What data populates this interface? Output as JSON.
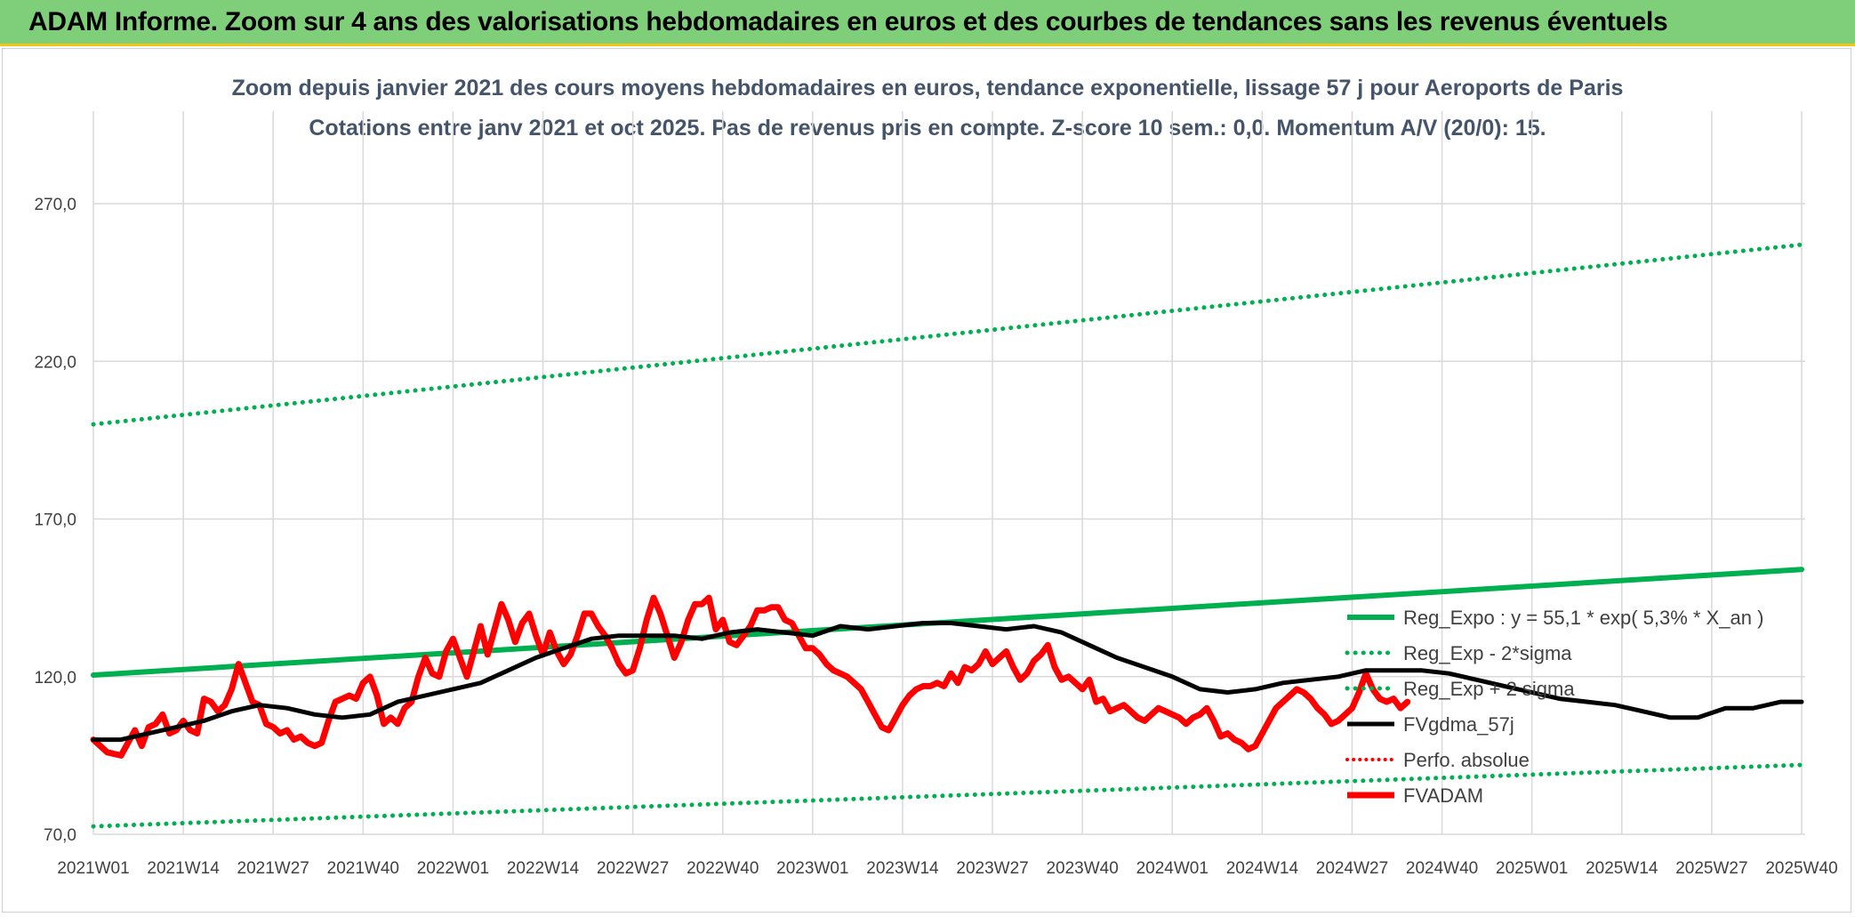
{
  "header": {
    "title": "ADAM Informe. Zoom sur 4 ans des valorisations hebdomadaires en euros et des courbes de tendances sans les revenus éventuels"
  },
  "colors": {
    "banner": "#7fcf7a",
    "banner_border": "#f0c419",
    "green": "#00b050",
    "black": "#000000",
    "red": "#ff0000",
    "grid": "#d9d9d9"
  },
  "chart_data": {
    "type": "line",
    "title": "Zoom depuis janvier 2021 des cours moyens hebdomadaires en euros, tendance exponentielle, lissage 57 j pour Aeroports de Paris",
    "subtitle": "Cotations entre janv 2021 et oct 2025. Pas de revenus pris en compte. Z-score 10 sem.: 0,0. Momentum A/V (20/0): 15.",
    "xlabel": "",
    "ylabel": "",
    "ylim": [
      70,
      290
    ],
    "yticks": [
      70,
      120,
      170,
      220,
      270
    ],
    "ytick_labels": [
      "70,0",
      "120,0",
      "170,0",
      "220,0",
      "270,0"
    ],
    "xticks": [
      "2021W01",
      "2021W14",
      "2021W27",
      "2021W40",
      "2022W01",
      "2022W14",
      "2022W27",
      "2022W40",
      "2023W01",
      "2023W14",
      "2023W27",
      "2023W40",
      "2024W01",
      "2024W14",
      "2024W27",
      "2024W40",
      "2025W01",
      "2025W14",
      "2025W27",
      "2025W40"
    ],
    "x_range_weeks": [
      0,
      247
    ],
    "grid": true,
    "legend_position": "right",
    "series": [
      {
        "name": "Reg_Expo : y = 55,1 * exp( 5,3% *  X_an )",
        "style": "solid-green",
        "points": [
          [
            0,
            120.5
          ],
          [
            247,
            154
          ]
        ]
      },
      {
        "name": "Reg_Exp - 2*sigma",
        "style": "dotted-green",
        "points": [
          [
            0,
            72.5
          ],
          [
            247,
            92
          ]
        ]
      },
      {
        "name": "Reg_Exp + 2 sigma",
        "style": "dotted-green",
        "points": [
          [
            0,
            200
          ],
          [
            247,
            257
          ]
        ]
      },
      {
        "name": "FVgdma_57j",
        "style": "solid-black",
        "points": [
          [
            0,
            100
          ],
          [
            4,
            100
          ],
          [
            8,
            102
          ],
          [
            12,
            104
          ],
          [
            16,
            106
          ],
          [
            20,
            109
          ],
          [
            24,
            111
          ],
          [
            28,
            110
          ],
          [
            32,
            108
          ],
          [
            36,
            107
          ],
          [
            40,
            108
          ],
          [
            44,
            112
          ],
          [
            48,
            114
          ],
          [
            52,
            116
          ],
          [
            56,
            118
          ],
          [
            60,
            122
          ],
          [
            64,
            126
          ],
          [
            68,
            129
          ],
          [
            72,
            132
          ],
          [
            76,
            133
          ],
          [
            80,
            133
          ],
          [
            84,
            133
          ],
          [
            88,
            132
          ],
          [
            92,
            134
          ],
          [
            96,
            135
          ],
          [
            100,
            134
          ],
          [
            104,
            133
          ],
          [
            108,
            136
          ],
          [
            112,
            135
          ],
          [
            116,
            136
          ],
          [
            120,
            137
          ],
          [
            124,
            137
          ],
          [
            128,
            136
          ],
          [
            132,
            135
          ],
          [
            136,
            136
          ],
          [
            140,
            134
          ],
          [
            144,
            130
          ],
          [
            148,
            126
          ],
          [
            152,
            123
          ],
          [
            156,
            120
          ],
          [
            160,
            116
          ],
          [
            164,
            115
          ],
          [
            168,
            116
          ],
          [
            172,
            118
          ],
          [
            176,
            119
          ],
          [
            180,
            120
          ],
          [
            184,
            122
          ],
          [
            188,
            122
          ],
          [
            192,
            122
          ],
          [
            196,
            121
          ],
          [
            200,
            119
          ],
          [
            204,
            117
          ],
          [
            208,
            115
          ],
          [
            212,
            113
          ],
          [
            216,
            112
          ],
          [
            220,
            111
          ],
          [
            224,
            109
          ],
          [
            228,
            107
          ],
          [
            232,
            107
          ],
          [
            236,
            110
          ],
          [
            240,
            110
          ],
          [
            244,
            112
          ],
          [
            247,
            112
          ]
        ]
      },
      {
        "name": "Perfo. absolue",
        "style": "dotted-red",
        "points": []
      },
      {
        "name": "FVADAM",
        "style": "thick-red",
        "points": [
          [
            0,
            100
          ],
          [
            2,
            96
          ],
          [
            4,
            95
          ],
          [
            6,
            103
          ],
          [
            7,
            98
          ],
          [
            8,
            104
          ],
          [
            9,
            105
          ],
          [
            10,
            108
          ],
          [
            11,
            102
          ],
          [
            12,
            103
          ],
          [
            13,
            106
          ],
          [
            14,
            103
          ],
          [
            15,
            102
          ],
          [
            16,
            113
          ],
          [
            17,
            112
          ],
          [
            18,
            109
          ],
          [
            19,
            111
          ],
          [
            20,
            116
          ],
          [
            21,
            124
          ],
          [
            22,
            118
          ],
          [
            23,
            112
          ],
          [
            24,
            111
          ],
          [
            25,
            105
          ],
          [
            26,
            104
          ],
          [
            27,
            102
          ],
          [
            28,
            103
          ],
          [
            29,
            100
          ],
          [
            30,
            101
          ],
          [
            31,
            99
          ],
          [
            32,
            98
          ],
          [
            33,
            99
          ],
          [
            34,
            106
          ],
          [
            35,
            112
          ],
          [
            36,
            113
          ],
          [
            37,
            114
          ],
          [
            38,
            113
          ],
          [
            39,
            118
          ],
          [
            40,
            120
          ],
          [
            41,
            114
          ],
          [
            42,
            105
          ],
          [
            43,
            107
          ],
          [
            44,
            105
          ],
          [
            45,
            110
          ],
          [
            46,
            112
          ],
          [
            47,
            120
          ],
          [
            48,
            126
          ],
          [
            49,
            121
          ],
          [
            50,
            120
          ],
          [
            51,
            128
          ],
          [
            52,
            132
          ],
          [
            53,
            126
          ],
          [
            54,
            120
          ],
          [
            55,
            128
          ],
          [
            56,
            136
          ],
          [
            57,
            127
          ],
          [
            58,
            135
          ],
          [
            59,
            143
          ],
          [
            60,
            138
          ],
          [
            61,
            131
          ],
          [
            62,
            137
          ],
          [
            63,
            140
          ],
          [
            64,
            133
          ],
          [
            65,
            127
          ],
          [
            66,
            134
          ],
          [
            67,
            128
          ],
          [
            68,
            124
          ],
          [
            69,
            127
          ],
          [
            70,
            133
          ],
          [
            71,
            140
          ],
          [
            72,
            140
          ],
          [
            73,
            136
          ],
          [
            74,
            133
          ],
          [
            75,
            129
          ],
          [
            76,
            124
          ],
          [
            77,
            121
          ],
          [
            78,
            122
          ],
          [
            79,
            129
          ],
          [
            80,
            138
          ],
          [
            81,
            145
          ],
          [
            82,
            140
          ],
          [
            83,
            133
          ],
          [
            84,
            126
          ],
          [
            85,
            131
          ],
          [
            86,
            138
          ],
          [
            87,
            143
          ],
          [
            88,
            143
          ],
          [
            89,
            145
          ],
          [
            90,
            135
          ],
          [
            91,
            138
          ],
          [
            92,
            131
          ],
          [
            93,
            130
          ],
          [
            94,
            133
          ],
          [
            95,
            136
          ],
          [
            96,
            141
          ],
          [
            97,
            141
          ],
          [
            98,
            142
          ],
          [
            99,
            142
          ],
          [
            100,
            138
          ],
          [
            101,
            137
          ],
          [
            102,
            133
          ],
          [
            103,
            129
          ],
          [
            104,
            129
          ],
          [
            105,
            127
          ],
          [
            106,
            124
          ],
          [
            107,
            122
          ],
          [
            108,
            121
          ],
          [
            109,
            120
          ],
          [
            110,
            118
          ],
          [
            111,
            116
          ],
          [
            112,
            112
          ],
          [
            113,
            108
          ],
          [
            114,
            104
          ],
          [
            115,
            103
          ],
          [
            116,
            107
          ],
          [
            117,
            111
          ],
          [
            118,
            114
          ],
          [
            119,
            116
          ],
          [
            120,
            117
          ],
          [
            121,
            117
          ],
          [
            122,
            118
          ],
          [
            123,
            117
          ],
          [
            124,
            121
          ],
          [
            125,
            118
          ],
          [
            126,
            123
          ],
          [
            127,
            122
          ],
          [
            128,
            124
          ],
          [
            129,
            128
          ],
          [
            130,
            124
          ],
          [
            131,
            126
          ],
          [
            132,
            128
          ],
          [
            133,
            123
          ],
          [
            134,
            119
          ],
          [
            135,
            121
          ],
          [
            136,
            125
          ],
          [
            137,
            127
          ],
          [
            138,
            130
          ],
          [
            139,
            123
          ],
          [
            140,
            119
          ],
          [
            141,
            120
          ],
          [
            142,
            118
          ],
          [
            143,
            116
          ],
          [
            144,
            119
          ],
          [
            145,
            112
          ],
          [
            146,
            113
          ],
          [
            147,
            109
          ],
          [
            148,
            110
          ],
          [
            149,
            111
          ],
          [
            150,
            109
          ],
          [
            151,
            107
          ],
          [
            152,
            106
          ],
          [
            153,
            108
          ],
          [
            154,
            110
          ],
          [
            155,
            109
          ],
          [
            156,
            108
          ],
          [
            157,
            107
          ],
          [
            158,
            105
          ],
          [
            159,
            107
          ],
          [
            160,
            108
          ],
          [
            161,
            110
          ],
          [
            162,
            106
          ],
          [
            163,
            101
          ],
          [
            164,
            102
          ],
          [
            165,
            100
          ],
          [
            166,
            99
          ],
          [
            167,
            97
          ],
          [
            168,
            98
          ],
          [
            169,
            102
          ],
          [
            170,
            106
          ],
          [
            171,
            110
          ],
          [
            172,
            112
          ],
          [
            173,
            114
          ],
          [
            174,
            116
          ],
          [
            175,
            115
          ],
          [
            176,
            113
          ],
          [
            177,
            110
          ],
          [
            178,
            108
          ],
          [
            179,
            105
          ],
          [
            180,
            106
          ],
          [
            181,
            108
          ],
          [
            182,
            110
          ],
          [
            183,
            115
          ],
          [
            184,
            121
          ],
          [
            185,
            116
          ],
          [
            186,
            113
          ],
          [
            187,
            112
          ],
          [
            188,
            113
          ],
          [
            189,
            110
          ],
          [
            190,
            112
          ]
        ]
      }
    ]
  }
}
